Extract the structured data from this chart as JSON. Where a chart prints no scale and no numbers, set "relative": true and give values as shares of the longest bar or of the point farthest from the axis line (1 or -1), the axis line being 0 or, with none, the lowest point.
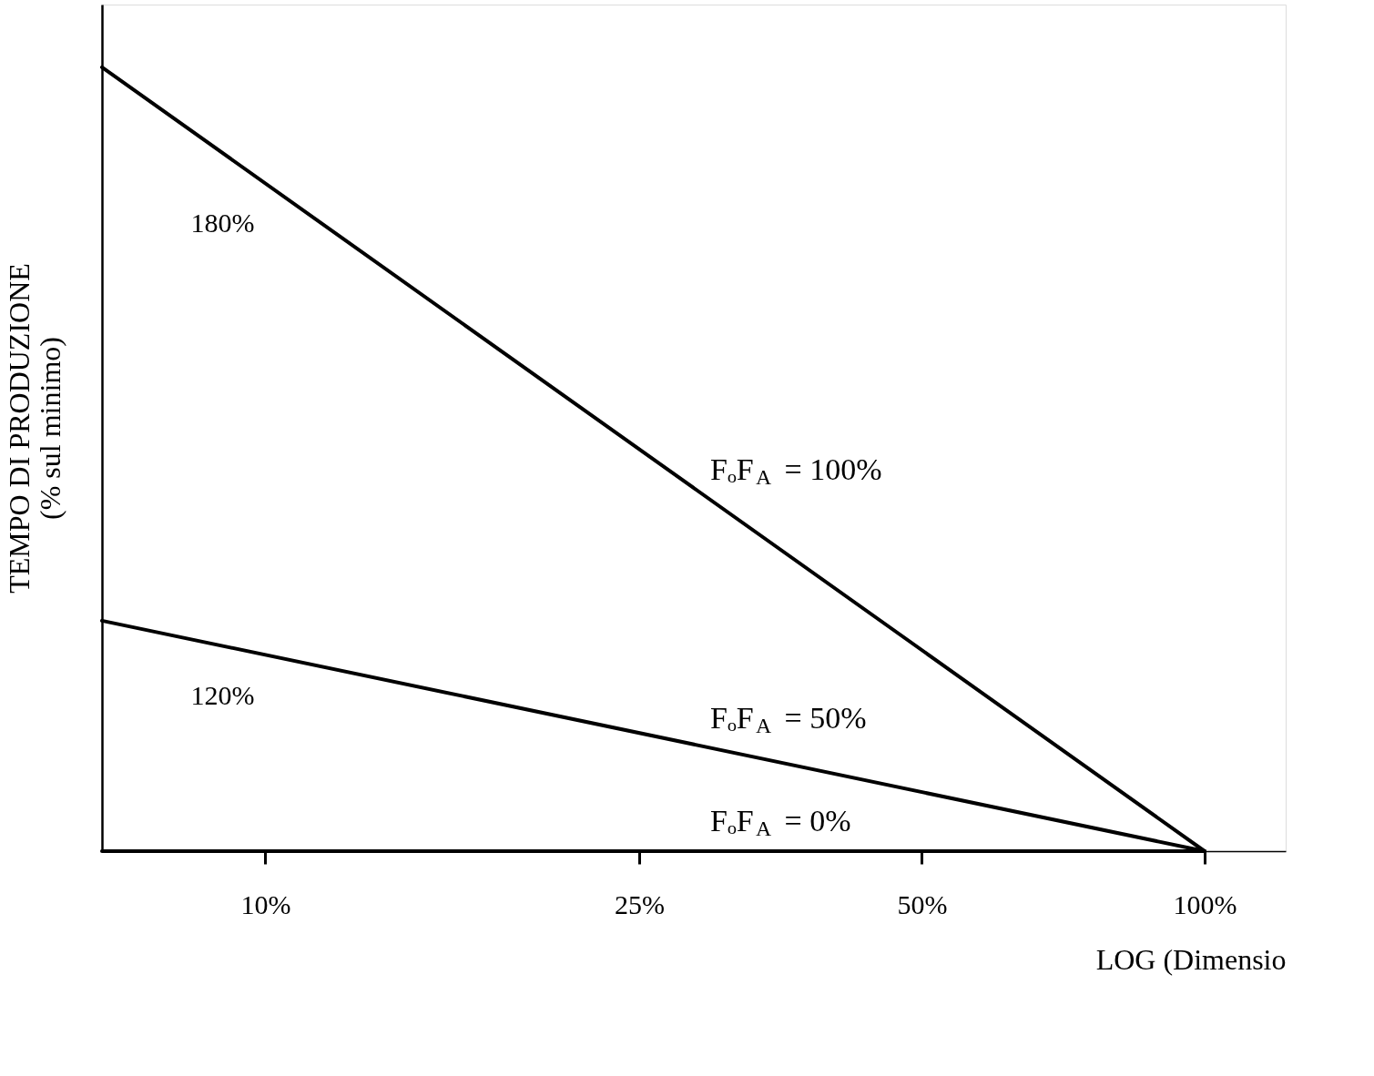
{
  "chart_data": {
    "type": "line",
    "xlabel": "LOG (Dimensio",
    "ylabel": "TEMPO DI PRODUZIONE\n(% sul minimo)",
    "relative": true,
    "log": "x",
    "xlim": [
      6.7,
      122
    ],
    "xticks": [
      {
        "value": 10,
        "label": "10%"
      },
      {
        "value": 25,
        "label": "25%"
      },
      {
        "value": 50,
        "label": "50%"
      },
      {
        "value": 100,
        "label": "100%"
      }
    ],
    "x": [
      6.7,
      100
    ],
    "series": [
      {
        "name": "FₒF$_{A}$ = 100%",
        "color": "#000000",
        "values": [
          1,
          0
        ]
      },
      {
        "name": "FₒF$_{A}$ = 50%",
        "color": "#000000",
        "values": [
          0.294,
          0
        ]
      },
      {
        "name": "FₒF$_{A}$ = 0%",
        "color": "#000000",
        "values": [
          0,
          0
        ]
      }
    ],
    "annotations": [
      {
        "text": "180%",
        "x": 10,
        "y": 0.852
      },
      {
        "text": "120%",
        "x": 10,
        "y": 0.25
      }
    ],
    "grid": false,
    "marker": "none",
    "line_style": "solid"
  }
}
